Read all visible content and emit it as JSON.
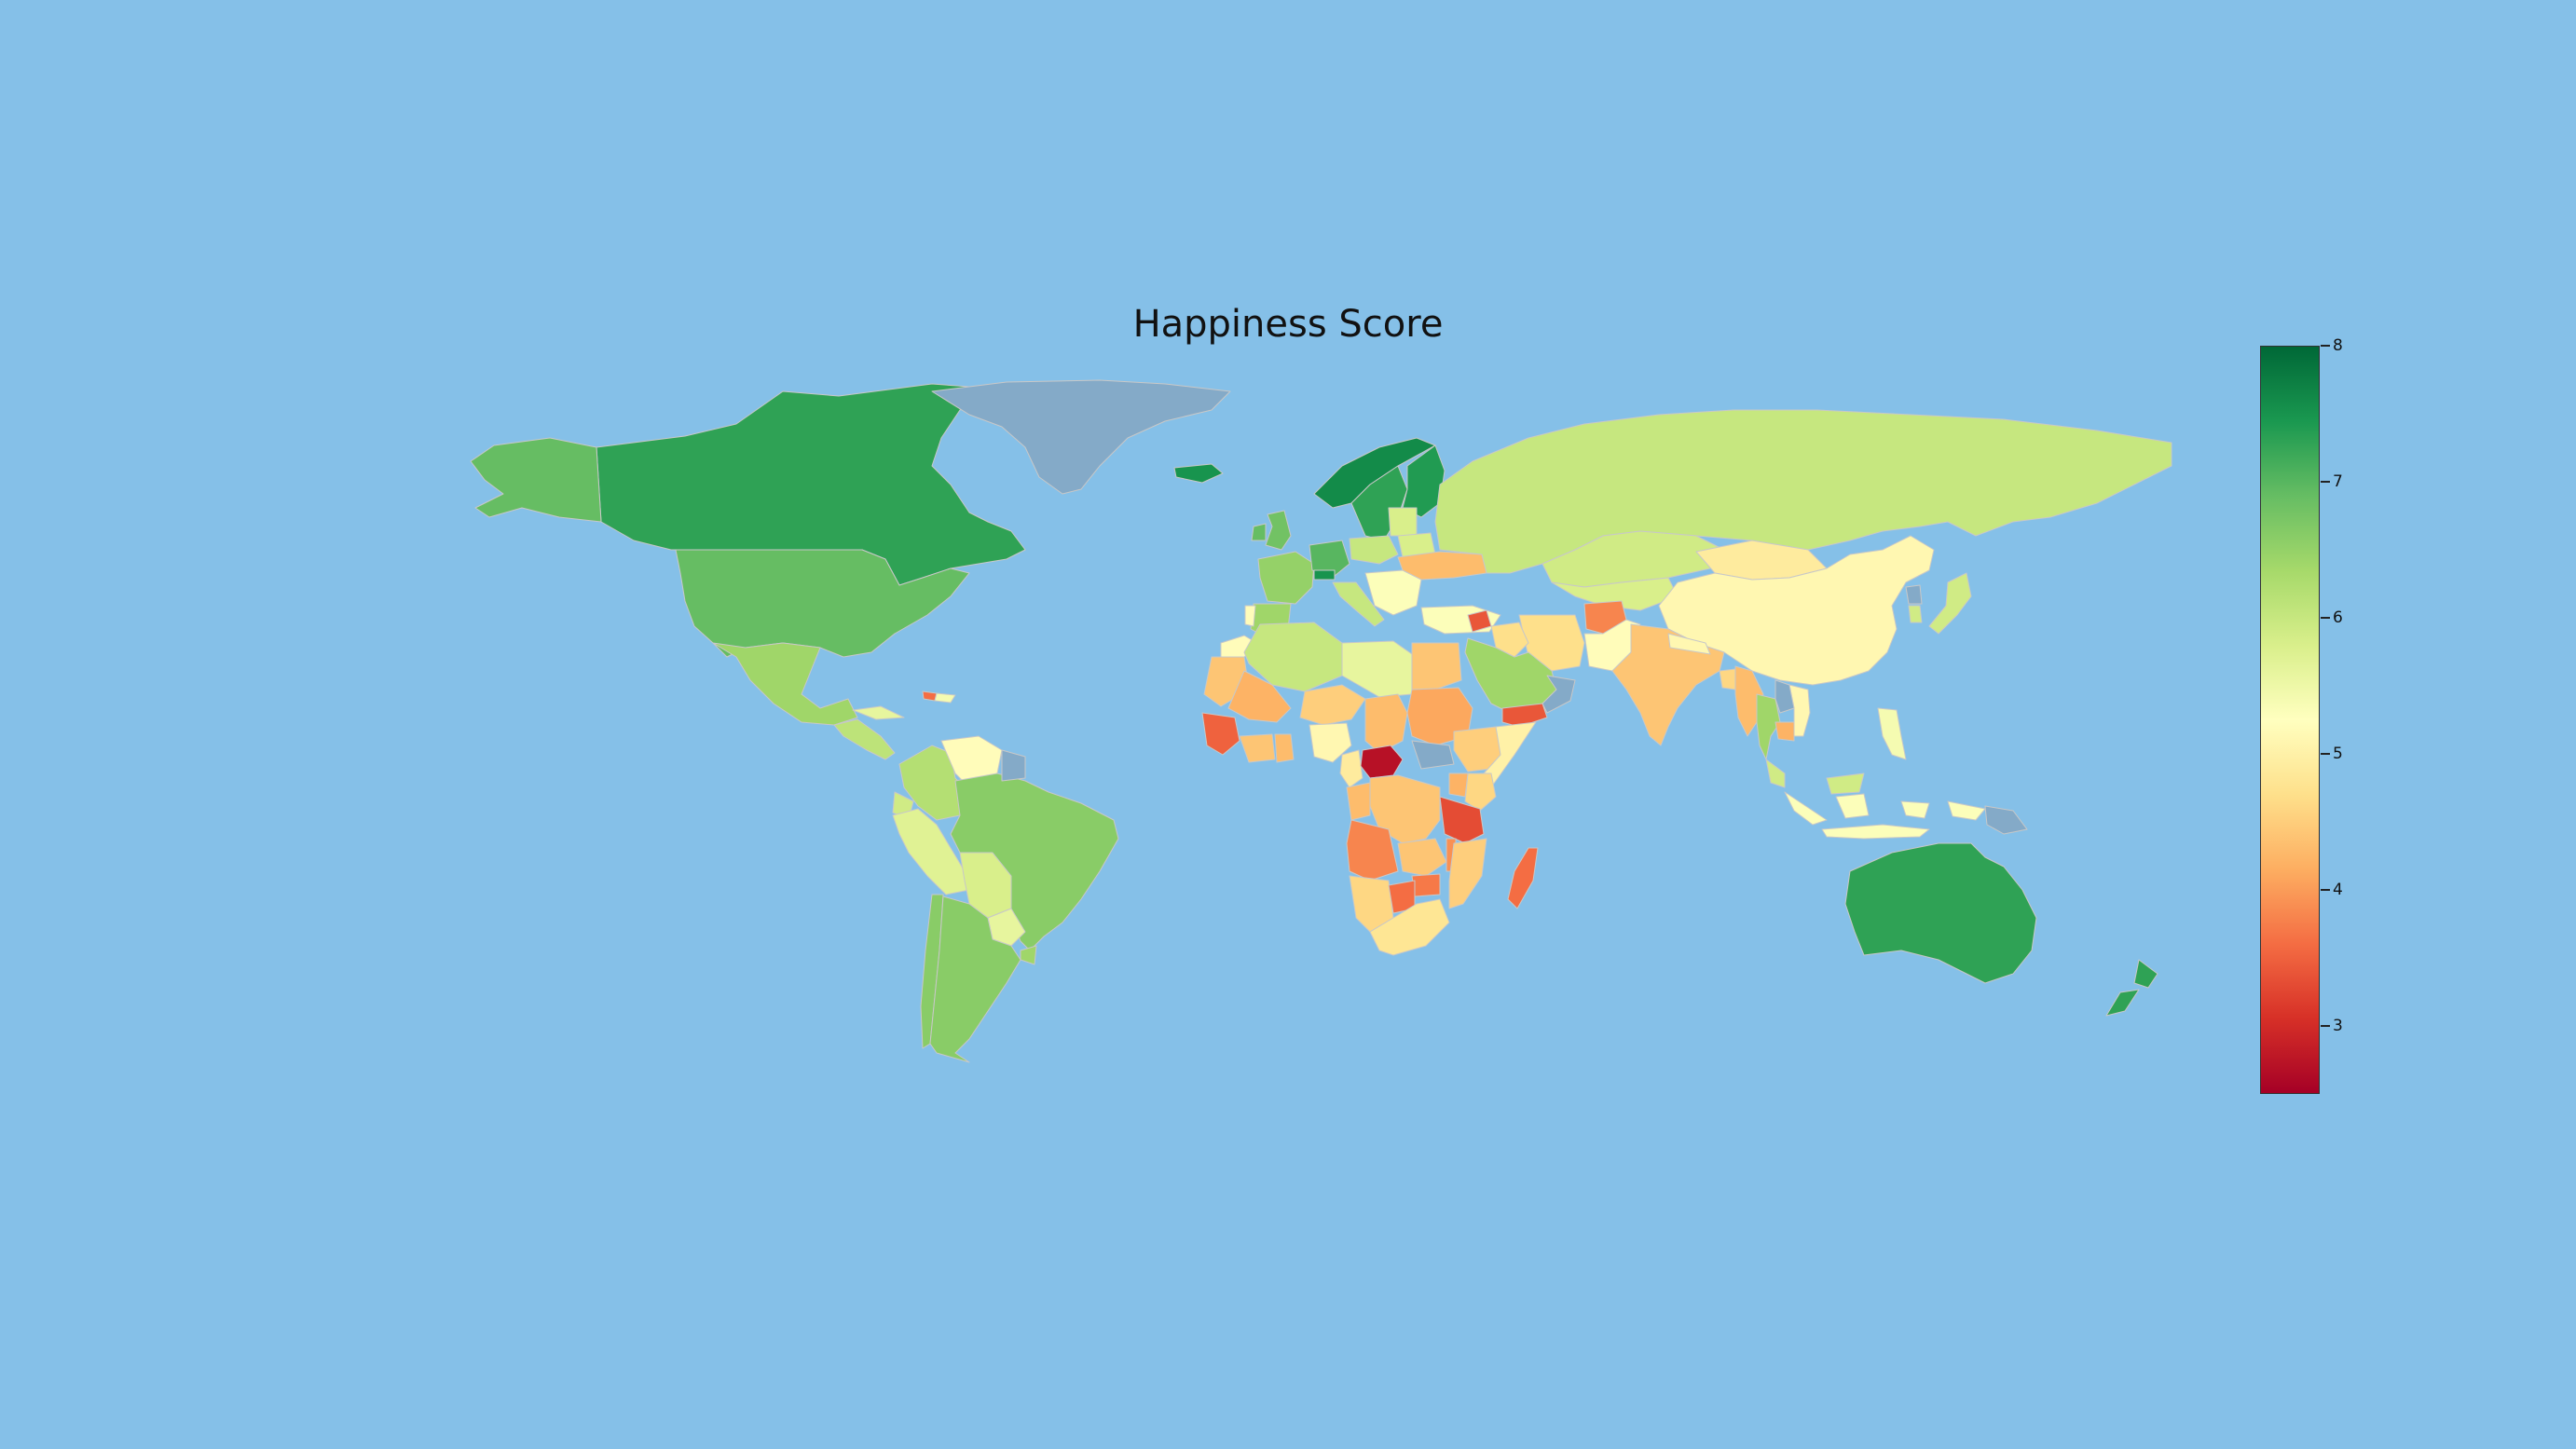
{
  "title": "Happiness Score",
  "colorbar": {
    "min": 2.5,
    "max": 8,
    "ticks": [
      "3",
      "4",
      "5",
      "6",
      "7",
      "8"
    ],
    "colormap": "RdYlGn"
  },
  "colors": {
    "ocean": "#85c0e8",
    "no_data": "#84aac8",
    "border": "#c8c8c8"
  },
  "chart_data": {
    "type": "choropleth",
    "title": "Happiness Score",
    "value_range": [
      2.5,
      8
    ],
    "regions": [
      {
        "region": "Canada",
        "value": 7.3
      },
      {
        "region": "Alaska (United States)",
        "value": 6.9
      },
      {
        "region": "United States",
        "value": 6.9
      },
      {
        "region": "Mexico",
        "value": 6.4
      },
      {
        "region": "Central America",
        "value": 6.1
      },
      {
        "region": "Cuba",
        "value": 5.6
      },
      {
        "region": "Haiti",
        "value": 3.6
      },
      {
        "region": "Dominican Republic",
        "value": 5.4
      },
      {
        "region": "Colombia",
        "value": 6.2
      },
      {
        "region": "Venezuela",
        "value": 5.2
      },
      {
        "region": "Ecuador",
        "value": 5.9
      },
      {
        "region": "Peru",
        "value": 5.7
      },
      {
        "region": "Bolivia",
        "value": 5.8
      },
      {
        "region": "Brazil",
        "value": 6.6
      },
      {
        "region": "Paraguay",
        "value": 5.6
      },
      {
        "region": "Uruguay",
        "value": 6.4
      },
      {
        "region": "Chile",
        "value": 6.6
      },
      {
        "region": "Argentina",
        "value": 6.6
      },
      {
        "region": "Greenland",
        "value": null
      },
      {
        "region": "Guyana / Suriname",
        "value": null
      },
      {
        "region": "Iceland",
        "value": 7.5
      },
      {
        "region": "Norway",
        "value": 7.6
      },
      {
        "region": "Sweden",
        "value": 7.3
      },
      {
        "region": "Finland",
        "value": 7.4
      },
      {
        "region": "United Kingdom",
        "value": 6.8
      },
      {
        "region": "Ireland",
        "value": 6.9
      },
      {
        "region": "France",
        "value": 6.5
      },
      {
        "region": "Spain",
        "value": 6.4
      },
      {
        "region": "Portugal",
        "value": 5.2
      },
      {
        "region": "Germany",
        "value": 7.0
      },
      {
        "region": "Switzerland",
        "value": 7.5
      },
      {
        "region": "Italy",
        "value": 6.0
      },
      {
        "region": "Poland",
        "value": 6.0
      },
      {
        "region": "Baltic States",
        "value": 5.8
      },
      {
        "region": "Belarus",
        "value": 5.8
      },
      {
        "region": "Ukraine",
        "value": 4.3
      },
      {
        "region": "Balkans",
        "value": 5.3
      },
      {
        "region": "Turkey",
        "value": 5.3
      },
      {
        "region": "Russia",
        "value": 6.0
      },
      {
        "region": "Kazakhstan",
        "value": 5.9
      },
      {
        "region": "Central Asia",
        "value": 5.8
      },
      {
        "region": "Mongolia",
        "value": 4.9
      },
      {
        "region": "China",
        "value": 5.1
      },
      {
        "region": "Japan",
        "value": 5.9
      },
      {
        "region": "North Korea",
        "value": null
      },
      {
        "region": "South Korea",
        "value": 5.9
      },
      {
        "region": "Iran",
        "value": 4.7
      },
      {
        "region": "Afghanistan",
        "value": 3.8
      },
      {
        "region": "Pakistan",
        "value": 5.2
      },
      {
        "region": "India",
        "value": 4.4
      },
      {
        "region": "Nepal / Bhutan",
        "value": 5.1
      },
      {
        "region": "Bangladesh",
        "value": 4.6
      },
      {
        "region": "Myanmar",
        "value": 4.3
      },
      {
        "region": "Thailand",
        "value": 6.4
      },
      {
        "region": "Vietnam",
        "value": 5.1
      },
      {
        "region": "Cambodia",
        "value": 4.2
      },
      {
        "region": "Laos",
        "value": null
      },
      {
        "region": "Malaysia",
        "value": 5.9
      },
      {
        "region": "Indonesia",
        "value": 5.3
      },
      {
        "region": "Philippines",
        "value": 5.4
      },
      {
        "region": "Papua New Guinea",
        "value": null
      },
      {
        "region": "Syria",
        "value": 3.4
      },
      {
        "region": "Iraq",
        "value": 4.7
      },
      {
        "region": "Saudi Arabia",
        "value": 6.4
      },
      {
        "region": "Yemen",
        "value": 3.4
      },
      {
        "region": "Oman",
        "value": null
      },
      {
        "region": "Morocco",
        "value": 5.2
      },
      {
        "region": "Algeria",
        "value": 6.0
      },
      {
        "region": "Libya",
        "value": 5.6
      },
      {
        "region": "Egypt",
        "value": 4.4
      },
      {
        "region": "Sudan",
        "value": 4.1
      },
      {
        "region": "South Sudan",
        "value": null
      },
      {
        "region": "Mauritania",
        "value": 4.4
      },
      {
        "region": "Mali",
        "value": 4.2
      },
      {
        "region": "Niger",
        "value": 4.5
      },
      {
        "region": "Chad",
        "value": 4.3
      },
      {
        "region": "Nigeria",
        "value": 5.1
      },
      {
        "region": "Guinea",
        "value": 3.5
      },
      {
        "region": "Ivory Coast",
        "value": 4.4
      },
      {
        "region": "Ghana",
        "value": 4.3
      },
      {
        "region": "Cameroon",
        "value": 4.9
      },
      {
        "region": "Central African Republic",
        "value": 2.7
      },
      {
        "region": "Ethiopia",
        "value": 4.5
      },
      {
        "region": "Somalia",
        "value": 5.0
      },
      {
        "region": "Kenya",
        "value": 4.6
      },
      {
        "region": "Uganda",
        "value": 4.2
      },
      {
        "region": "Tanzania",
        "value": 3.3
      },
      {
        "region": "DR Congo",
        "value": 4.4
      },
      {
        "region": "Congo",
        "value": 4.3
      },
      {
        "region": "Angola",
        "value": 3.8
      },
      {
        "region": "Zambia",
        "value": 4.4
      },
      {
        "region": "Malawi",
        "value": 3.9
      },
      {
        "region": "Mozambique",
        "value": 4.5
      },
      {
        "region": "Zimbabwe",
        "value": 3.7
      },
      {
        "region": "Namibia",
        "value": 4.6
      },
      {
        "region": "Botswana",
        "value": 3.6
      },
      {
        "region": "South Africa",
        "value": 4.8
      },
      {
        "region": "Madagascar",
        "value": 3.6
      },
      {
        "region": "Australia",
        "value": 7.3
      },
      {
        "region": "New Zealand",
        "value": 7.3
      }
    ]
  }
}
